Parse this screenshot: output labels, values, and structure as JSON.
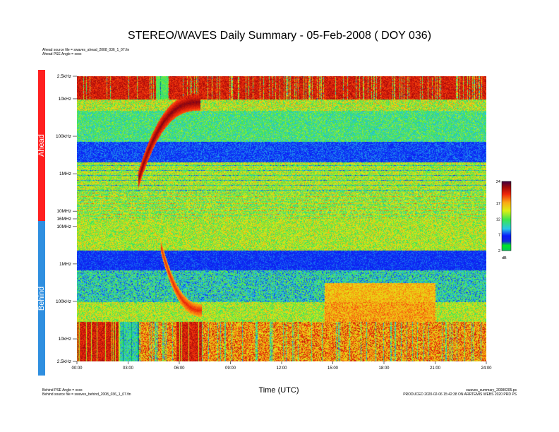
{
  "title": "STEREO/WAVES Daily Summary - 05-Feb-2008 ( DOY 036)",
  "header_left": {
    "line1": "Ahead source file = swaves_ahead_2008_036_1_07.fin",
    "line2": "Ahead PSE Angle = xxxx"
  },
  "footer_left": {
    "line1": "Behind PSE Angle = xxxx",
    "line2": "Behind source file = swaves_behind_2008_036_1_07.fin"
  },
  "footer_right": {
    "line1": "swaves_summary_20080205.ps",
    "line2": "PRODUCED 2020-02-06 15:42:38 ON ARRTEMIS WEBS 2020 PRD PS"
  },
  "spacecraft": {
    "ahead_label": "Ahead",
    "behind_label": "Behind",
    "ahead_color": "#ff2020",
    "behind_color": "#2f8fe0"
  },
  "chart_data": {
    "type": "heatmap",
    "title": "STEREO/WAVES Daily Summary - 05-Feb-2008 ( DOY 036)",
    "xlabel": "Time (UTC)",
    "ylabel": "",
    "x_ticks": [
      "00:00",
      "03:00",
      "06:00",
      "09:00",
      "12:00",
      "15:00",
      "18:00",
      "21:00",
      "24:00"
    ],
    "xlim_hours": [
      0,
      24
    ],
    "ahead_y_ticks": [
      {
        "label": "2.5kHz",
        "freq_khz": 2.5
      },
      {
        "label": "10kHz",
        "freq_khz": 10
      },
      {
        "label": "100kHz",
        "freq_khz": 100
      },
      {
        "label": "1MHz",
        "freq_khz": 1000
      },
      {
        "label": "10MHz",
        "freq_khz": 10000
      },
      {
        "label": "16MHz",
        "freq_khz": 16000
      }
    ],
    "behind_y_ticks": [
      {
        "label": "10MHz",
        "freq_khz": 10000
      },
      {
        "label": "1MHz",
        "freq_khz": 1000
      },
      {
        "label": "100kHz",
        "freq_khz": 100
      },
      {
        "label": "10kHz",
        "freq_khz": 10
      },
      {
        "label": "2.5kHz",
        "freq_khz": 2.5
      }
    ],
    "ylim_khz": [
      2.5,
      16000
    ],
    "colorbar": {
      "ticks": [
        "24",
        "17",
        "12",
        "7",
        "2"
      ],
      "tick_values": [
        24,
        17,
        12,
        7,
        2
      ],
      "unit": "dB",
      "range": [
        2,
        24
      ]
    },
    "events": [
      {
        "spacecraft": "Ahead",
        "type": "type III burst",
        "start_hour": 3.3,
        "end_hour": 7.5
      },
      {
        "spacecraft": "Behind",
        "type": "type III burst",
        "start_hour": 4.8,
        "end_hour": 7.3
      }
    ]
  }
}
